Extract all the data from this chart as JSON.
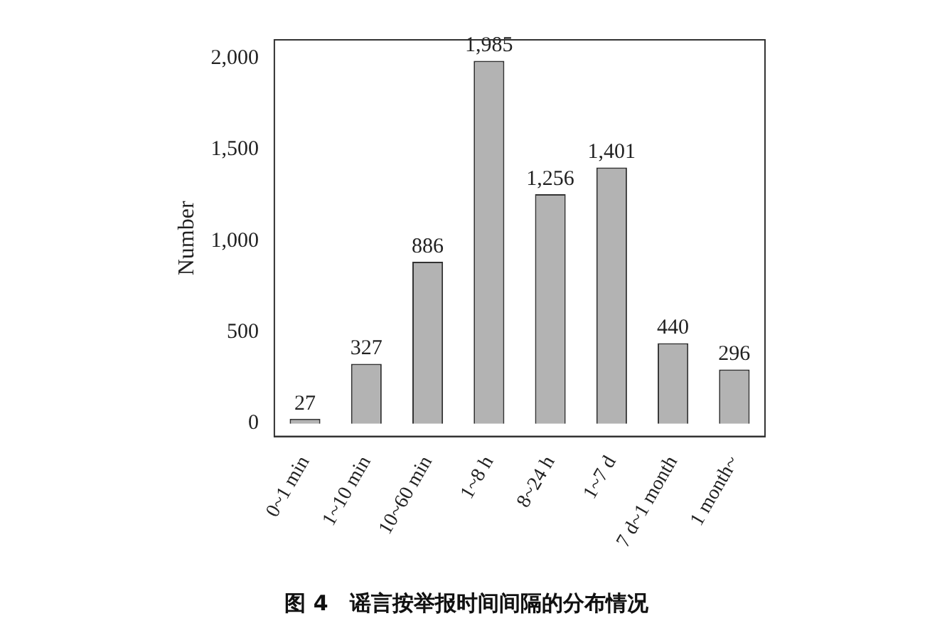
{
  "chart_data": {
    "type": "bar",
    "title": "图 4　谣言按举报时间间隔的分布情况",
    "ylabel": "Number",
    "categories": [
      "0~1 min",
      "1~10 min",
      "10~60 min",
      "1~8 h",
      "8~24 h",
      "1~7 d",
      "7 d~1 month",
      "1 month~"
    ],
    "values": [
      27,
      327,
      886,
      1985,
      1256,
      1401,
      440,
      296
    ],
    "color": "#b3b3b3",
    "ylim": [
      -70,
      2100
    ],
    "yticks": [
      0,
      500,
      {
        "value": 1000,
        "label": "1,000"
      },
      {
        "value": 1500,
        "label": "1,500"
      },
      {
        "value": 2000,
        "label": "2,000"
      }
    ],
    "data_labels": true,
    "value_labels": [
      "27",
      "327",
      "886",
      "1,985",
      "1,256",
      "1,401",
      "440",
      "296"
    ],
    "grid": false,
    "legend": false
  }
}
